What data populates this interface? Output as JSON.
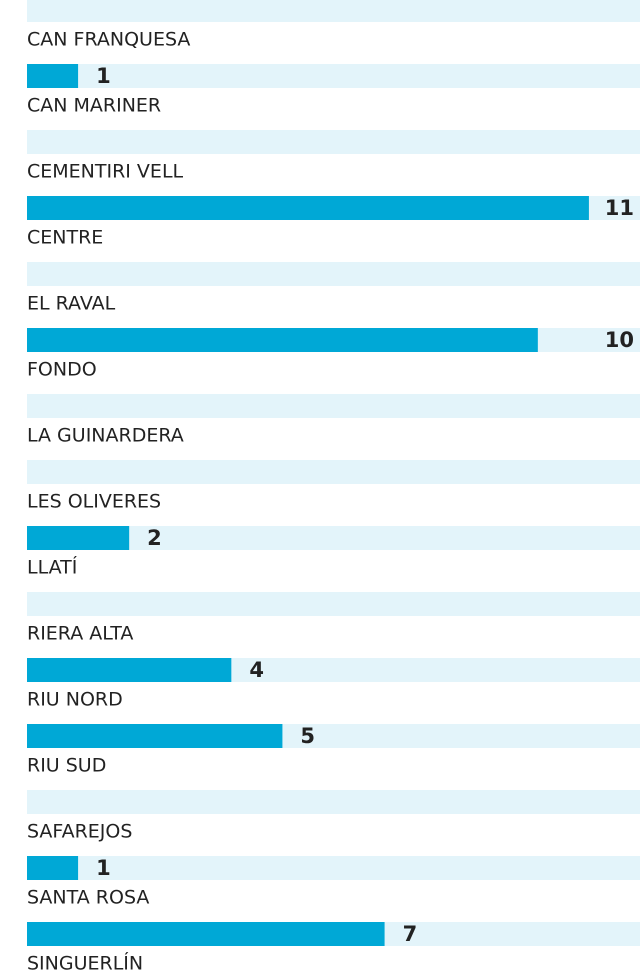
{
  "chart_data": {
    "type": "bar",
    "orientation": "horizontal",
    "categories": [
      "CAN FRANQUESA",
      "CAN MARINER",
      "CEMENTIRI VELL",
      "CENTRE",
      "EL RAVAL",
      "FONDO",
      "LA GUINARDERA",
      "LES OLIVERES",
      "LLATÍ",
      "RIERA ALTA",
      "RIU NORD",
      "RIU SUD",
      "SAFAREJOS",
      "SANTA ROSA",
      "SINGUERLÍN"
    ],
    "values": [
      1,
      null,
      11,
      null,
      10,
      null,
      null,
      2,
      null,
      4,
      5,
      null,
      1,
      7,
      null
    ],
    "color": "#00a8d6",
    "track_color": "#e3f4fa",
    "xlim": [
      0,
      12
    ]
  }
}
